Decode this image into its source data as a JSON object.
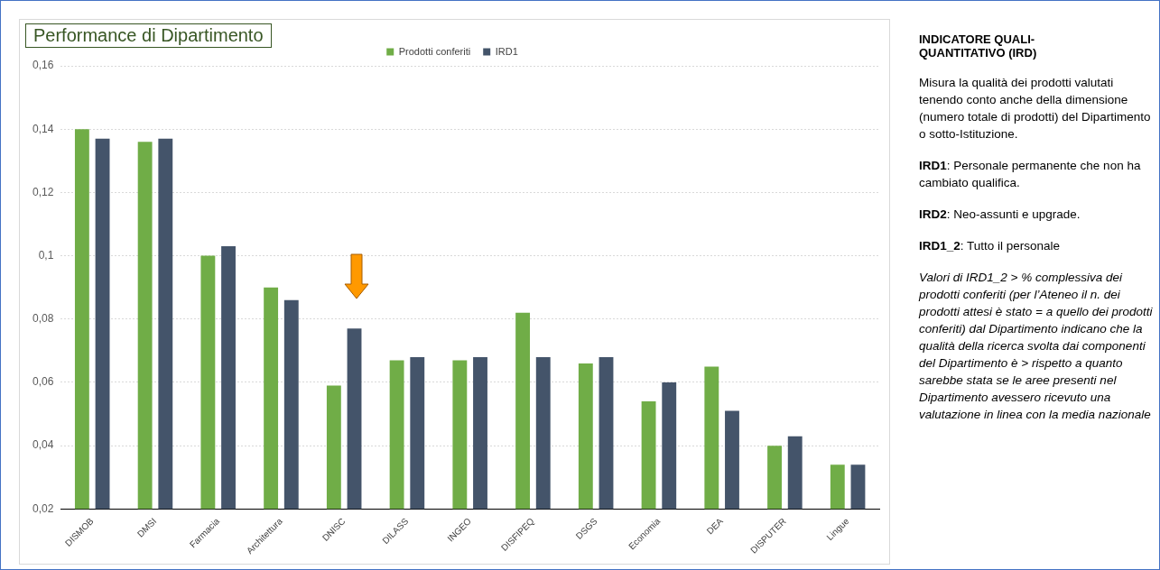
{
  "chart_data": {
    "type": "bar",
    "title": "Performance di Dipartimento",
    "categories": [
      "DISMOB",
      "DMSI",
      "Farmacia",
      "Architettura",
      "DNISC",
      "DILASS",
      "INGEO",
      "DISFIPEQ",
      "DSGS",
      "Economia",
      "DEA",
      "DISPUTER",
      "Lingue"
    ],
    "series": [
      {
        "name": "Prodotti conferiti",
        "color": "#70ad47",
        "values": [
          0.14,
          0.136,
          0.1,
          0.09,
          0.059,
          0.067,
          0.067,
          0.082,
          0.066,
          0.054,
          0.065,
          0.04,
          0.034
        ]
      },
      {
        "name": "IRD1",
        "color": "#44546a",
        "values": [
          0.137,
          0.137,
          0.103,
          0.086,
          0.077,
          0.068,
          0.068,
          0.068,
          0.068,
          0.06,
          0.051,
          0.043,
          0.034
        ]
      }
    ],
    "ylim": [
      0.02,
      0.16
    ],
    "yticks": [
      {
        "value": 0.02,
        "label": "0,02"
      },
      {
        "value": 0.04,
        "label": "0,04"
      },
      {
        "value": 0.06,
        "label": "0,06"
      },
      {
        "value": 0.08,
        "label": "0,08"
      },
      {
        "value": 0.1,
        "label": "0,1"
      },
      {
        "value": 0.12,
        "label": "0,12"
      },
      {
        "value": 0.14,
        "label": "0,14"
      },
      {
        "value": 0.16,
        "label": "0,16"
      }
    ],
    "grid": "y",
    "legend": "top",
    "annotations": [
      "INDICATORE QUALI-QUANTITATIVO (IRD)",
      "Misura la qualità dei prodotti valutati tenendo conto anche della dimensione (numero totale di prodotti) del Dipartimento o sotto-Istituzione.",
      "IRD1: Personale permanente che non ha cambiato qualifica.",
      "IRD2: Neo-assunti e upgrade.",
      "IRD1_2: Tutto il personale",
      "Valori di IRD1_2 > % complessiva dei prodotti conferiti (per l’Ateneo il n. dei prodotti attesi è stato = a quello dei prodotti conferiti) dal Dipartimento indicano che la qualità della ricerca svolta dai componenti del Dipartimento è > rispetto a quanto sarebbe stata se le aree presenti nel Dipartimento avessero ricevuto una valutazione in linea con la media nazionale"
    ]
  }
}
